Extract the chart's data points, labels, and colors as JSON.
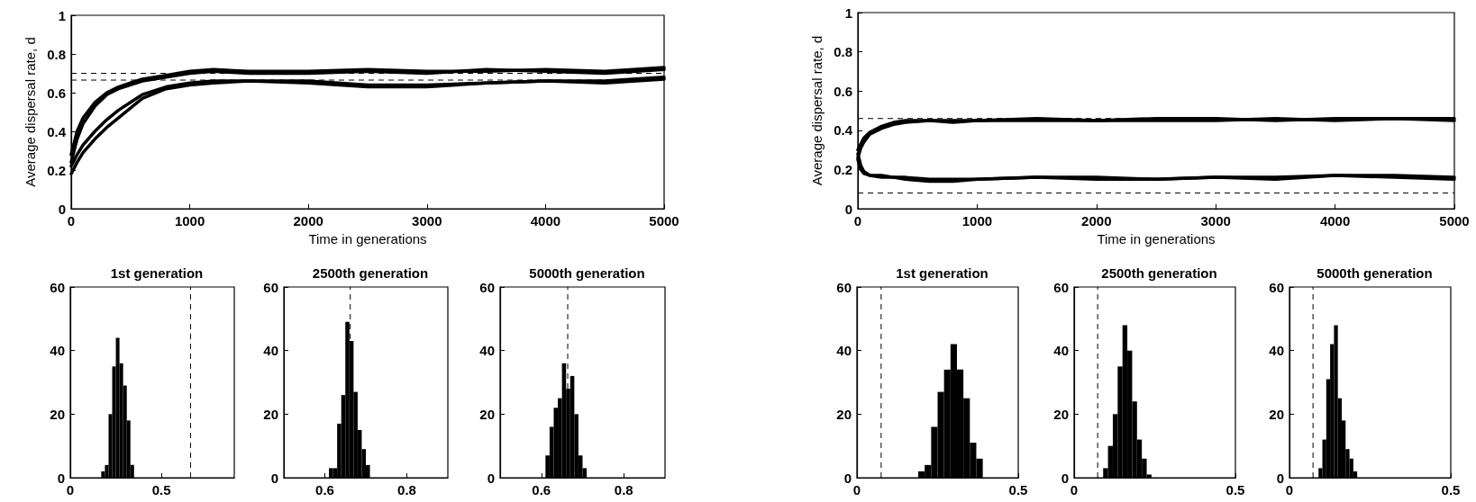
{
  "chart_data": [
    {
      "type": "line",
      "xlabel": "Time in generations",
      "ylabel": "Average dispersal rate, d",
      "marker": "none",
      "line_style": "solid",
      "grid": false,
      "xlim": [
        0,
        5000
      ],
      "xticks": [
        0,
        1000,
        2000,
        3000,
        4000,
        5000
      ],
      "ylim": [
        0,
        1
      ],
      "yticks": [
        0,
        0.2,
        0.4,
        0.6,
        0.8,
        1
      ],
      "x": [
        0,
        50,
        100,
        200,
        300,
        400,
        500,
        600,
        800,
        1000,
        1200,
        1500,
        2000,
        2500,
        3000,
        3500,
        4000,
        4500,
        5000
      ],
      "series": [
        {
          "color": "#000000",
          "values": [
            0.28,
            0.4,
            0.47,
            0.55,
            0.6,
            0.63,
            0.65,
            0.67,
            0.69,
            0.71,
            0.72,
            0.71,
            0.71,
            0.72,
            0.71,
            0.71,
            0.72,
            0.71,
            0.73
          ]
        },
        {
          "color": "#000000",
          "values": [
            0.24,
            0.36,
            0.44,
            0.53,
            0.59,
            0.62,
            0.64,
            0.66,
            0.68,
            0.7,
            0.71,
            0.7,
            0.7,
            0.71,
            0.7,
            0.72,
            0.71,
            0.7,
            0.72
          ]
        },
        {
          "color": "#000000",
          "values": [
            0.22,
            0.28,
            0.33,
            0.4,
            0.46,
            0.51,
            0.55,
            0.59,
            0.63,
            0.65,
            0.66,
            0.66,
            0.66,
            0.64,
            0.64,
            0.65,
            0.66,
            0.66,
            0.68
          ]
        },
        {
          "color": "#000000",
          "values": [
            0.18,
            0.24,
            0.29,
            0.36,
            0.42,
            0.47,
            0.52,
            0.57,
            0.62,
            0.64,
            0.65,
            0.66,
            0.65,
            0.63,
            0.63,
            0.65,
            0.66,
            0.65,
            0.67
          ]
        }
      ],
      "ref_lines": [
        {
          "axis": "y",
          "value": 0.7,
          "line_style": "dashed",
          "color": "#000000"
        },
        {
          "axis": "y",
          "value": 0.665,
          "line_style": "dashed",
          "color": "#000000"
        }
      ]
    },
    {
      "type": "line",
      "xlabel": "Time in generations",
      "ylabel": "Average dispersal rate, d",
      "marker": "none",
      "line_style": "solid",
      "grid": false,
      "xlim": [
        0,
        5000
      ],
      "xticks": [
        0,
        1000,
        2000,
        3000,
        4000,
        5000
      ],
      "ylim": [
        0,
        1
      ],
      "yticks": [
        0,
        0.2,
        0.4,
        0.6,
        0.8,
        1
      ],
      "x": [
        0,
        25,
        50,
        100,
        200,
        300,
        400,
        600,
        800,
        1000,
        1500,
        2000,
        2500,
        3000,
        3500,
        4000,
        4500,
        5000
      ],
      "series": [
        {
          "color": "#000000",
          "values": [
            0.3,
            0.33,
            0.36,
            0.39,
            0.42,
            0.44,
            0.45,
            0.45,
            0.45,
            0.45,
            0.45,
            0.45,
            0.46,
            0.46,
            0.45,
            0.46,
            0.46,
            0.46
          ]
        },
        {
          "color": "#000000",
          "values": [
            0.26,
            0.31,
            0.34,
            0.38,
            0.41,
            0.43,
            0.44,
            0.45,
            0.44,
            0.45,
            0.46,
            0.45,
            0.45,
            0.45,
            0.46,
            0.45,
            0.46,
            0.45
          ]
        },
        {
          "color": "#000000",
          "values": [
            0.28,
            0.22,
            0.19,
            0.17,
            0.17,
            0.16,
            0.16,
            0.15,
            0.15,
            0.15,
            0.16,
            0.16,
            0.15,
            0.16,
            0.16,
            0.17,
            0.17,
            0.16
          ]
        },
        {
          "color": "#000000",
          "values": [
            0.25,
            0.2,
            0.18,
            0.17,
            0.16,
            0.16,
            0.15,
            0.14,
            0.14,
            0.15,
            0.16,
            0.15,
            0.15,
            0.16,
            0.15,
            0.17,
            0.16,
            0.15
          ]
        }
      ],
      "ref_lines": [
        {
          "axis": "y",
          "value": 0.46,
          "line_style": "dashed",
          "color": "#000000"
        },
        {
          "axis": "y",
          "value": 0.08,
          "line_style": "dashed",
          "color": "#000000"
        }
      ]
    },
    {
      "type": "histogram",
      "title": "1st generation",
      "color": "#000000",
      "grid": false,
      "bins": [
        0.17,
        0.19,
        0.21,
        0.23,
        0.25,
        0.27,
        0.29,
        0.31,
        0.33,
        0.35
      ],
      "values": [
        2,
        4,
        20,
        35,
        44,
        36,
        29,
        18,
        4
      ],
      "xlim": [
        0,
        0.9
      ],
      "xticks": [
        0,
        0.5
      ],
      "ylim": [
        0,
        60
      ],
      "yticks": [
        0,
        20,
        40,
        60
      ],
      "ref_lines": [
        {
          "axis": "x",
          "value": 0.66,
          "line_style": "dashed",
          "color": "#000000"
        }
      ]
    },
    {
      "type": "histogram",
      "title": "2500th generation",
      "color": "#000000",
      "grid": false,
      "bins": [
        0.61,
        0.62,
        0.63,
        0.64,
        0.65,
        0.66,
        0.67,
        0.68,
        0.69,
        0.7,
        0.71
      ],
      "values": [
        3,
        3,
        17,
        26,
        49,
        43,
        27,
        15,
        9,
        4
      ],
      "xlim": [
        0.5,
        0.9
      ],
      "xticks": [
        0.6,
        0.8
      ],
      "ylim": [
        0,
        60
      ],
      "yticks": [
        0,
        20,
        40,
        60
      ],
      "ref_lines": [
        {
          "axis": "x",
          "value": 0.662,
          "line_style": "dashed",
          "color": "#000000"
        }
      ]
    },
    {
      "type": "histogram",
      "title": "5000th generation",
      "color": "#000000",
      "grid": false,
      "bins": [
        0.61,
        0.62,
        0.63,
        0.64,
        0.65,
        0.66,
        0.67,
        0.68,
        0.69,
        0.7,
        0.71
      ],
      "values": [
        7,
        16,
        22,
        25,
        36,
        28,
        32,
        20,
        7,
        3
      ],
      "xlim": [
        0.5,
        0.9
      ],
      "xticks": [
        0.6,
        0.8
      ],
      "ylim": [
        0,
        60
      ],
      "yticks": [
        0,
        20,
        40,
        60
      ],
      "ref_lines": [
        {
          "axis": "x",
          "value": 0.664,
          "line_style": "dashed",
          "color": "#000000"
        }
      ]
    },
    {
      "type": "histogram",
      "title": "1st generation",
      "color": "#000000",
      "grid": false,
      "bins": [
        0.19,
        0.21,
        0.23,
        0.25,
        0.27,
        0.29,
        0.31,
        0.33,
        0.35,
        0.37,
        0.39
      ],
      "values": [
        2,
        4,
        16,
        27,
        34,
        42,
        34,
        25,
        11,
        6
      ],
      "xlim": [
        0,
        0.5
      ],
      "xticks": [
        0,
        0.5
      ],
      "ylim": [
        0,
        60
      ],
      "yticks": [
        0,
        20,
        40,
        60
      ],
      "ref_lines": [
        {
          "axis": "x",
          "value": 0.075,
          "line_style": "dashed",
          "color": "#000000"
        }
      ]
    },
    {
      "type": "histogram",
      "title": "2500th generation",
      "color": "#000000",
      "grid": false,
      "bins": [
        0.09,
        0.105,
        0.12,
        0.135,
        0.15,
        0.165,
        0.18,
        0.195,
        0.21,
        0.225,
        0.24
      ],
      "values": [
        3,
        10,
        20,
        35,
        48,
        40,
        24,
        12,
        6,
        1
      ],
      "xlim": [
        0,
        0.5
      ],
      "xticks": [
        0,
        0.5
      ],
      "ylim": [
        0,
        60
      ],
      "yticks": [
        0,
        20,
        40,
        60
      ],
      "ref_lines": [
        {
          "axis": "x",
          "value": 0.073,
          "line_style": "dashed",
          "color": "#000000"
        }
      ]
    },
    {
      "type": "histogram",
      "title": "5000th generation",
      "color": "#000000",
      "grid": false,
      "bins": [
        0.09,
        0.102,
        0.114,
        0.126,
        0.138,
        0.15,
        0.162,
        0.174,
        0.186,
        0.198,
        0.21
      ],
      "values": [
        3,
        12,
        31,
        42,
        48,
        25,
        18,
        9,
        6,
        2
      ],
      "xlim": [
        0,
        0.5
      ],
      "xticks": [
        0,
        0.5
      ],
      "ylim": [
        0,
        60
      ],
      "yticks": [
        0,
        20,
        40,
        60
      ],
      "ref_lines": [
        {
          "axis": "x",
          "value": 0.073,
          "line_style": "dashed",
          "color": "#000000"
        }
      ]
    }
  ]
}
